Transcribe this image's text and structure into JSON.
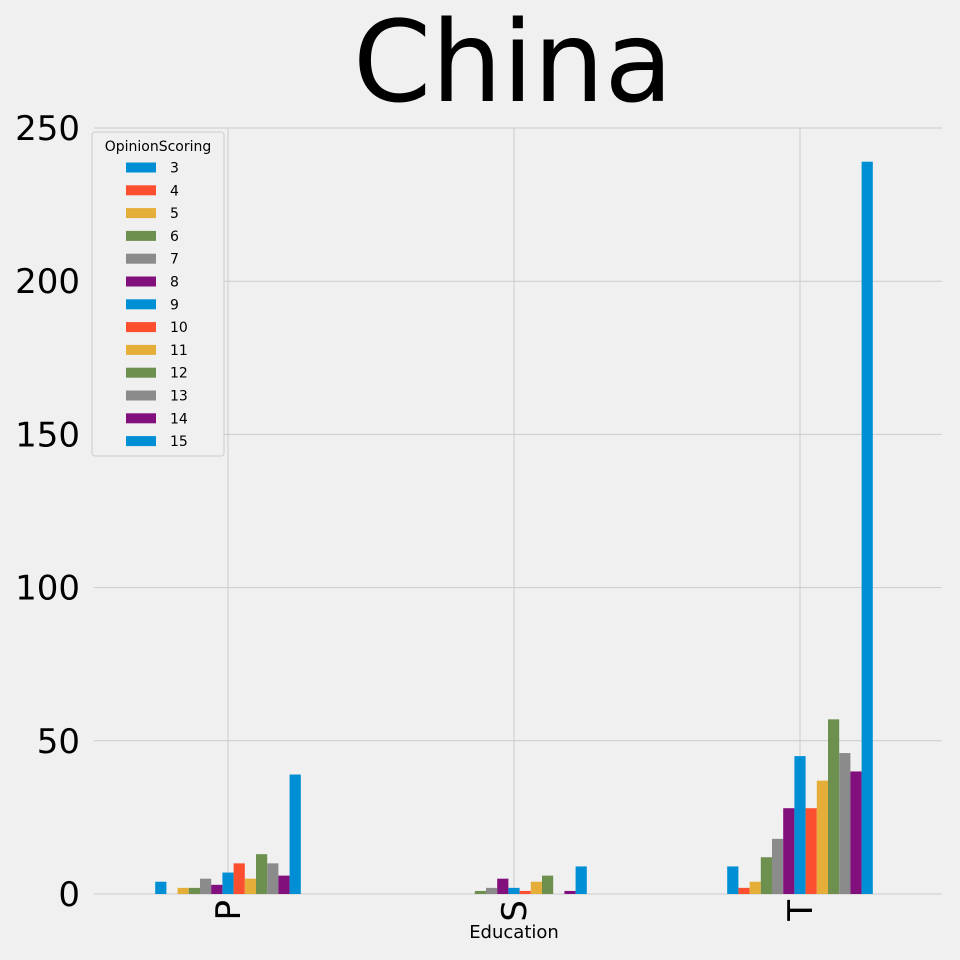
{
  "chart_data": {
    "type": "bar",
    "title": "China",
    "xlabel": "Education",
    "ylabel": "",
    "categories": [
      "P",
      "S",
      "T"
    ],
    "ylim": [
      0,
      250
    ],
    "yticks": [
      0,
      50,
      100,
      150,
      200,
      250
    ],
    "grid": true,
    "legend": {
      "title": "OpinionScoring",
      "placement": "top-left"
    },
    "series": [
      {
        "name": "3",
        "color": "#008fd5",
        "values": [
          4,
          0,
          9
        ]
      },
      {
        "name": "4",
        "color": "#fc4f30",
        "values": [
          0,
          0,
          2
        ]
      },
      {
        "name": "5",
        "color": "#e5ae38",
        "values": [
          2,
          0,
          4
        ]
      },
      {
        "name": "6",
        "color": "#6d904f",
        "values": [
          2,
          1,
          12
        ]
      },
      {
        "name": "7",
        "color": "#8b8b8b",
        "values": [
          5,
          2,
          18
        ]
      },
      {
        "name": "8",
        "color": "#810f7c",
        "values": [
          3,
          5,
          28
        ]
      },
      {
        "name": "9",
        "color": "#008fd5",
        "values": [
          7,
          2,
          45
        ]
      },
      {
        "name": "10",
        "color": "#fc4f30",
        "values": [
          10,
          1,
          28
        ]
      },
      {
        "name": "11",
        "color": "#e5ae38",
        "values": [
          5,
          4,
          37
        ]
      },
      {
        "name": "12",
        "color": "#6d904f",
        "values": [
          13,
          6,
          57
        ]
      },
      {
        "name": "13",
        "color": "#8b8b8b",
        "values": [
          10,
          0,
          46
        ]
      },
      {
        "name": "14",
        "color": "#810f7c",
        "values": [
          6,
          1,
          40
        ]
      },
      {
        "name": "15",
        "color": "#008fd5",
        "values": [
          39,
          9,
          239
        ]
      }
    ]
  }
}
